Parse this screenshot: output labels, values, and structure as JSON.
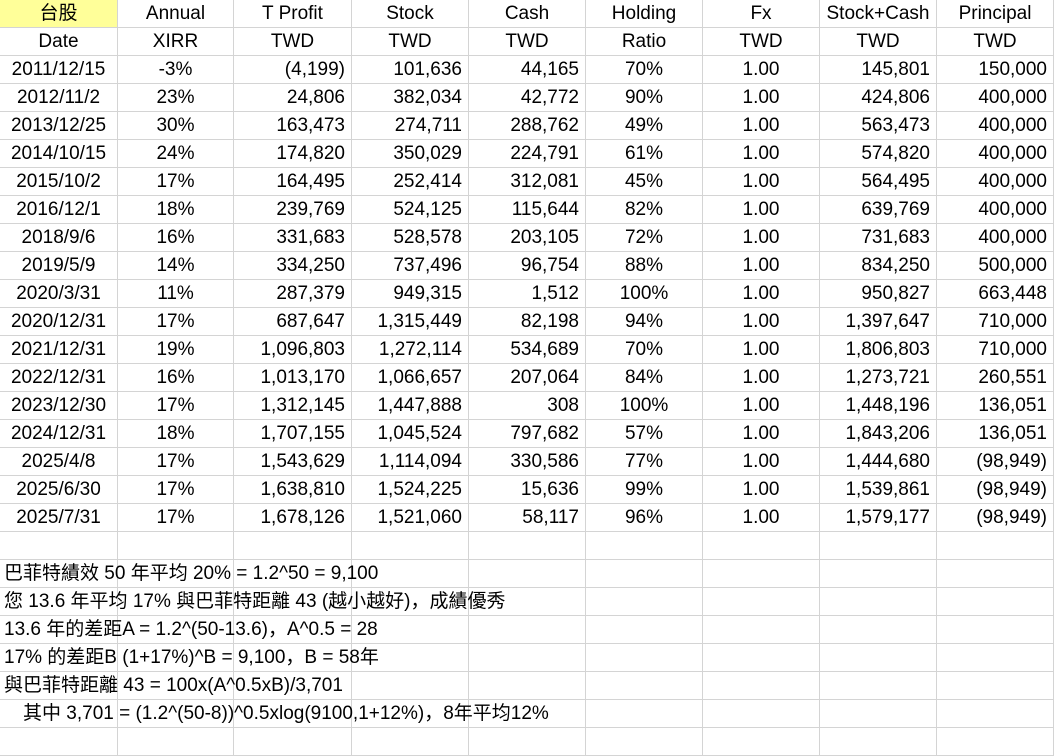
{
  "header": {
    "row1": [
      "台股",
      "Annual",
      "T Profit",
      "Stock",
      "Cash",
      "Holding",
      "Fx",
      "Stock+Cash",
      "Principal"
    ],
    "row2": [
      "Date",
      "XIRR",
      "TWD",
      "TWD",
      "TWD",
      "Ratio",
      "TWD",
      "TWD",
      "TWD"
    ]
  },
  "rows": [
    [
      "2011/12/15",
      "-3%",
      "(4,199)",
      "101,636",
      "44,165",
      "70%",
      "1.00",
      "145,801",
      "150,000"
    ],
    [
      "2012/11/2",
      "23%",
      "24,806",
      "382,034",
      "42,772",
      "90%",
      "1.00",
      "424,806",
      "400,000"
    ],
    [
      "2013/12/25",
      "30%",
      "163,473",
      "274,711",
      "288,762",
      "49%",
      "1.00",
      "563,473",
      "400,000"
    ],
    [
      "2014/10/15",
      "24%",
      "174,820",
      "350,029",
      "224,791",
      "61%",
      "1.00",
      "574,820",
      "400,000"
    ],
    [
      "2015/10/2",
      "17%",
      "164,495",
      "252,414",
      "312,081",
      "45%",
      "1.00",
      "564,495",
      "400,000"
    ],
    [
      "2016/12/1",
      "18%",
      "239,769",
      "524,125",
      "115,644",
      "82%",
      "1.00",
      "639,769",
      "400,000"
    ],
    [
      "2018/9/6",
      "16%",
      "331,683",
      "528,578",
      "203,105",
      "72%",
      "1.00",
      "731,683",
      "400,000"
    ],
    [
      "2019/5/9",
      "14%",
      "334,250",
      "737,496",
      "96,754",
      "88%",
      "1.00",
      "834,250",
      "500,000"
    ],
    [
      "2020/3/31",
      "11%",
      "287,379",
      "949,315",
      "1,512",
      "100%",
      "1.00",
      "950,827",
      "663,448"
    ],
    [
      "2020/12/31",
      "17%",
      "687,647",
      "1,315,449",
      "82,198",
      "94%",
      "1.00",
      "1,397,647",
      "710,000"
    ],
    [
      "2021/12/31",
      "19%",
      "1,096,803",
      "1,272,114",
      "534,689",
      "70%",
      "1.00",
      "1,806,803",
      "710,000"
    ],
    [
      "2022/12/31",
      "16%",
      "1,013,170",
      "1,066,657",
      "207,064",
      "84%",
      "1.00",
      "1,273,721",
      "260,551"
    ],
    [
      "2023/12/30",
      "17%",
      "1,312,145",
      "1,447,888",
      "308",
      "100%",
      "1.00",
      "1,448,196",
      "136,051"
    ],
    [
      "2024/12/31",
      "18%",
      "1,707,155",
      "1,045,524",
      "797,682",
      "57%",
      "1.00",
      "1,843,206",
      "136,051"
    ],
    [
      "2025/4/8",
      "17%",
      "1,543,629",
      "1,114,094",
      "330,586",
      "77%",
      "1.00",
      "1,444,680",
      "(98,949)"
    ],
    [
      "2025/6/30",
      "17%",
      "1,638,810",
      "1,524,225",
      "15,636",
      "99%",
      "1.00",
      "1,539,861",
      "(98,949)"
    ],
    [
      "2025/7/31",
      "17%",
      "1,678,126",
      "1,521,060",
      "58,117",
      "96%",
      "1.00",
      "1,579,177",
      "(98,949)"
    ]
  ],
  "notes": [
    "巴菲特績效 50 年平均 20% = 1.2^50 = 9,100",
    "您 13.6 年平均 17% 與巴菲特距離 43 (越小越好)，成績優秀",
    "13.6 年的差距A = 1.2^(50-13.6)，A^0.5 = 28",
    "17% 的差距B (1+17%)^B = 9,100，B = 58年",
    "與巴菲特距離 43 = 100x(A^0.5xB)/3,701",
    "　其中 3,701 = (1.2^(50-8))^0.5xlog(9100,1+12%)，8年平均12%"
  ],
  "colors": {
    "highlight": "#ffff99",
    "gridline": "#d4d4d4"
  }
}
